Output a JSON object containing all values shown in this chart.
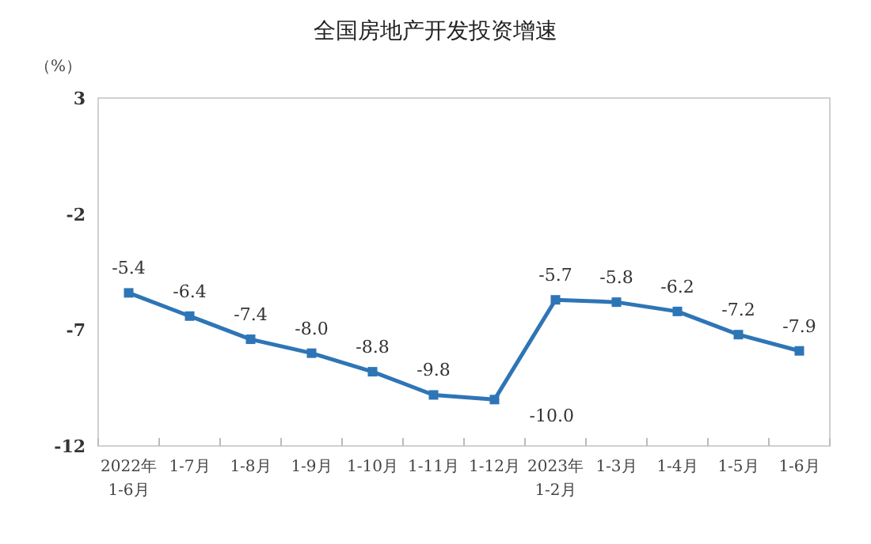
{
  "chart_data": {
    "type": "line",
    "title": "全国房地产开发投资增速",
    "ylabel": "（%）",
    "categories": [
      "2022年\n1-6月",
      "1-7月",
      "1-8月",
      "1-9月",
      "1-10月",
      "1-11月",
      "1-12月",
      "2023年\n1-2月",
      "1-3月",
      "1-4月",
      "1-5月",
      "1-6月"
    ],
    "series": [
      {
        "color": "#2e75b6",
        "values": [
          -5.4,
          -6.4,
          -7.4,
          -8.0,
          -8.8,
          -9.8,
          -10.0,
          -5.7,
          -5.8,
          -6.2,
          -7.2,
          -7.9
        ],
        "value_labels": [
          "-5.4",
          "-6.4",
          "-7.4",
          "-8.0",
          "-8.8",
          "-9.8",
          "-10.0",
          "-5.7",
          "-5.8",
          "-6.2",
          "-7.2",
          "-7.9"
        ]
      }
    ],
    "ylim": [
      -12,
      3
    ],
    "yticks": [
      3,
      -2,
      -7,
      -12
    ],
    "marker": "square",
    "grid": false
  }
}
